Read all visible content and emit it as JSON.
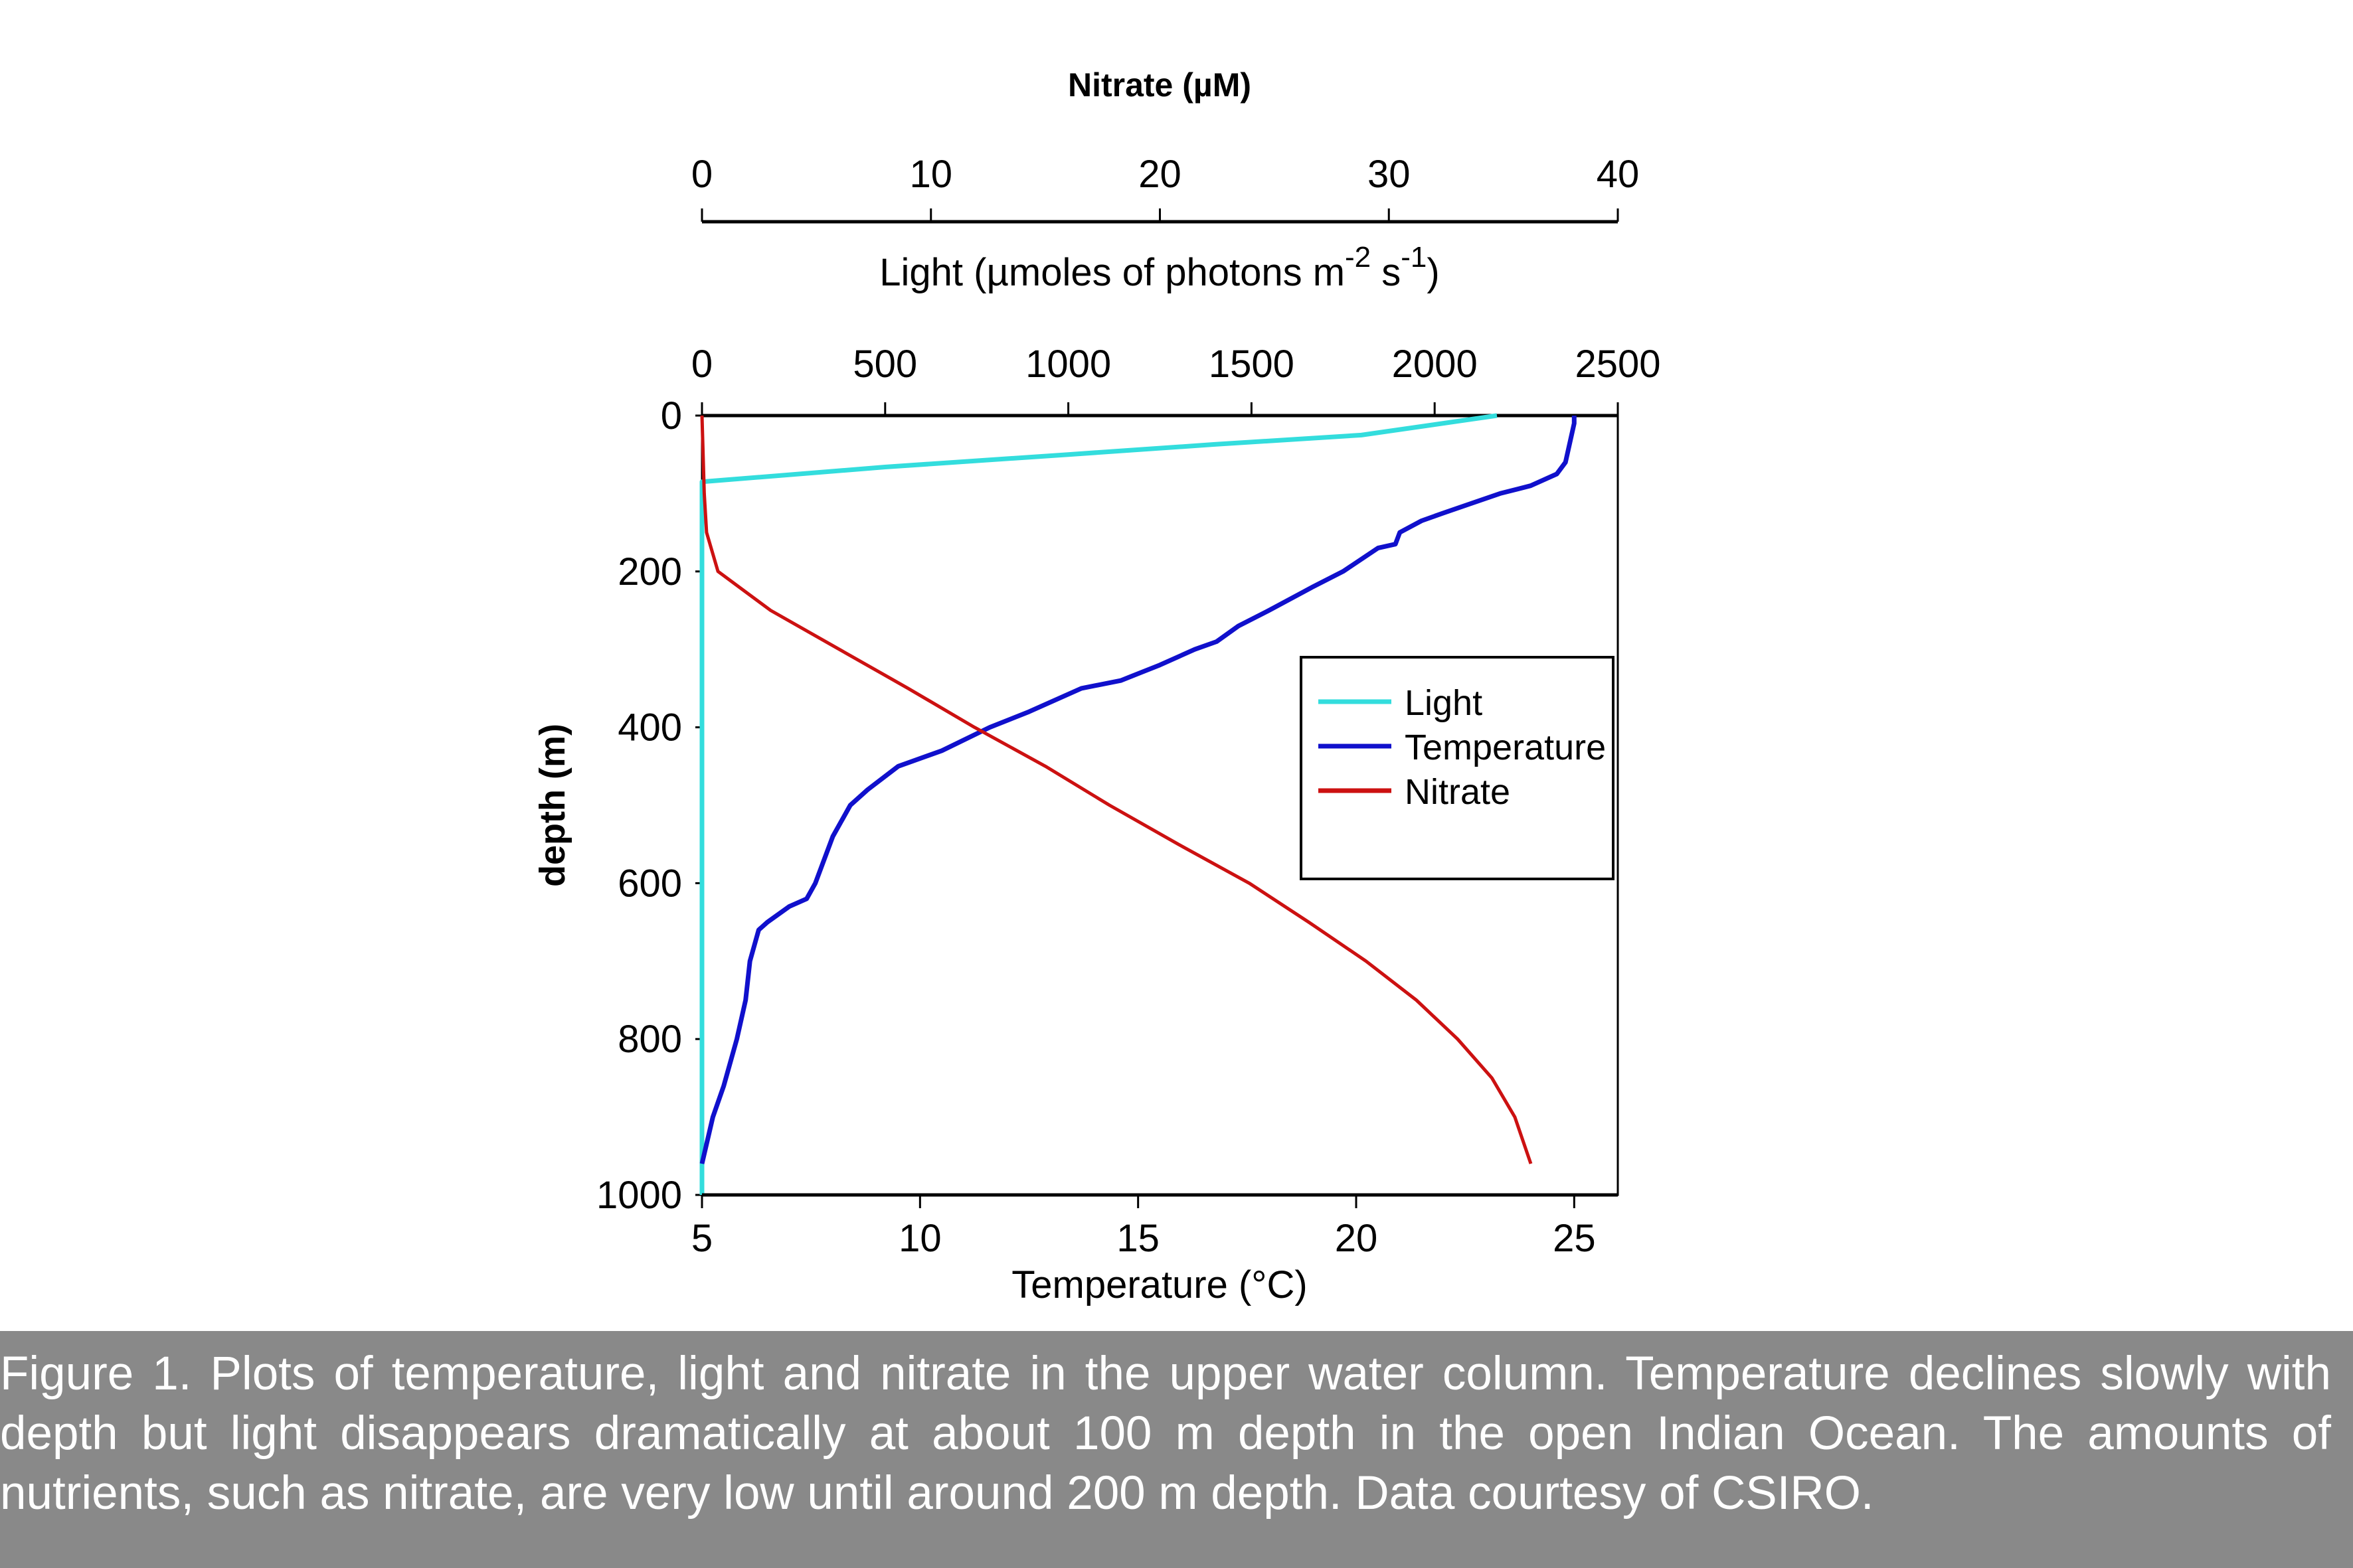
{
  "chart_data": {
    "type": "line",
    "ylabel": "depth (m)",
    "ylim": [
      0,
      1000
    ],
    "yticks": [
      "0",
      "200",
      "400",
      "600",
      "800",
      "1000"
    ],
    "y_inverted": true,
    "axes": {
      "nitrate": {
        "label": "Nitrate (µM)",
        "range": [
          0,
          40
        ],
        "ticks": [
          "0",
          "10",
          "20",
          "30",
          "40"
        ]
      },
      "light": {
        "label": "Light (µmoles of photons m",
        "sup1": "-2",
        "mid": " s",
        "sup2": "-1",
        "end": ")",
        "range": [
          0,
          2500
        ],
        "ticks": [
          "0",
          "500",
          "1000",
          "1500",
          "2000",
          "2500"
        ]
      },
      "temperature": {
        "label": "Temperature (°C)",
        "range": [
          5,
          26
        ],
        "ticks": [
          "5",
          "10",
          "15",
          "20",
          "25"
        ]
      }
    },
    "legend": {
      "placement": "right",
      "entries": [
        "Light",
        "Temperature",
        "Nitrate"
      ]
    },
    "series": [
      {
        "name": "Light",
        "axis": "light",
        "color": "#33dddd",
        "points": [
          [
            2170,
            0
          ],
          [
            1800,
            25
          ],
          [
            1400,
            37
          ],
          [
            1000,
            50
          ],
          [
            500,
            66
          ],
          [
            0,
            85
          ],
          [
            0,
            1000
          ]
        ]
      },
      {
        "name": "Temperature",
        "axis": "temperature",
        "color": "#1010cc",
        "points": [
          [
            25,
            0
          ],
          [
            25,
            10
          ],
          [
            24.8,
            60
          ],
          [
            24.6,
            75
          ],
          [
            24,
            90
          ],
          [
            23.3,
            100
          ],
          [
            22,
            125
          ],
          [
            21.5,
            135
          ],
          [
            21,
            150
          ],
          [
            20.9,
            165
          ],
          [
            20.5,
            170
          ],
          [
            19.7,
            200
          ],
          [
            19,
            220
          ],
          [
            18,
            250
          ],
          [
            17.3,
            270
          ],
          [
            16.8,
            290
          ],
          [
            16.3,
            300
          ],
          [
            15.5,
            320
          ],
          [
            14.6,
            340
          ],
          [
            13.7,
            350
          ],
          [
            12.5,
            380
          ],
          [
            11.6,
            400
          ],
          [
            10.5,
            430
          ],
          [
            9.5,
            450
          ],
          [
            8.8,
            480
          ],
          [
            8.4,
            500
          ],
          [
            8,
            540
          ],
          [
            7.6,
            600
          ],
          [
            7.4,
            620
          ],
          [
            7,
            630
          ],
          [
            6.5,
            650
          ],
          [
            6.3,
            660
          ],
          [
            6.1,
            700
          ],
          [
            6,
            750
          ],
          [
            5.8,
            800
          ],
          [
            5.5,
            860
          ],
          [
            5.25,
            900
          ],
          [
            5,
            960
          ]
        ]
      },
      {
        "name": "Nitrate",
        "axis": "nitrate",
        "color": "#cc1111",
        "points": [
          [
            0,
            0
          ],
          [
            0.1,
            100
          ],
          [
            0.2,
            150
          ],
          [
            0.7,
            200
          ],
          [
            3,
            250
          ],
          [
            6,
            300
          ],
          [
            9,
            350
          ],
          [
            11.9,
            400
          ],
          [
            15,
            450
          ],
          [
            17.8,
            500
          ],
          [
            20.8,
            550
          ],
          [
            23.9,
            600
          ],
          [
            26.5,
            650
          ],
          [
            29,
            700
          ],
          [
            31.2,
            750
          ],
          [
            33,
            800
          ],
          [
            34.5,
            850
          ],
          [
            35.5,
            900
          ],
          [
            36.2,
            960
          ]
        ]
      }
    ]
  },
  "caption": "Figure 1. Plots of temperature, light and nitrate in the upper water column. Temperature declines slowly with depth but light disappears dramatically at about 100 m depth in the open Indian Ocean. The amounts of nutrients, such as nitrate, are very low until around 200 m depth. Data courtesy of CSIRO.",
  "colors": {
    "caption_band": "#898989"
  }
}
